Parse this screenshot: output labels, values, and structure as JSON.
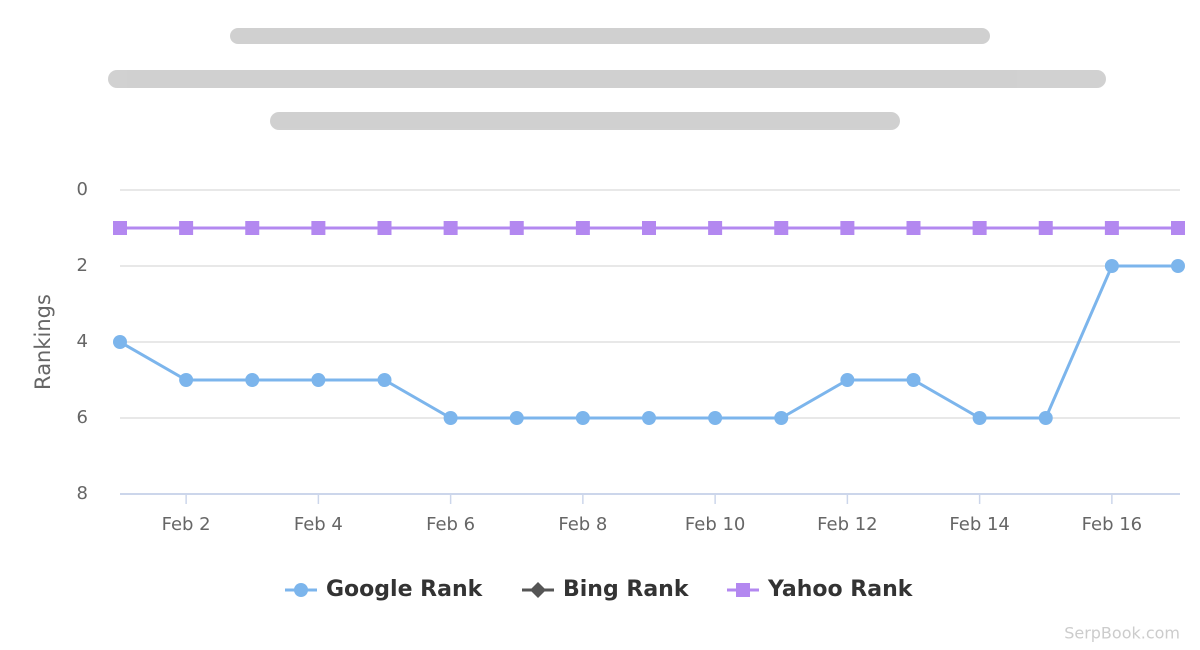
{
  "chart_data": {
    "type": "line",
    "y_label": "Rankings",
    "categories": [
      null,
      "Feb 2",
      null,
      "Feb 4",
      null,
      "Feb 6",
      null,
      "Feb 8",
      null,
      "Feb 10",
      null,
      "Feb 12",
      null,
      "Feb 14",
      null,
      "Feb 16",
      null
    ],
    "series": [
      {
        "name": "Google Rank",
        "color": "#7cb5ec",
        "marker": "circle",
        "values": [
          4,
          5,
          5,
          5,
          5,
          6,
          6,
          6,
          6,
          6,
          6,
          5,
          5,
          6,
          6,
          2,
          2
        ]
      },
      {
        "name": "Bing Rank",
        "color": "#555555",
        "marker": "diamond",
        "values": [
          null,
          null,
          null,
          null,
          null,
          null,
          null,
          null,
          null,
          null,
          null,
          null,
          null,
          null,
          null,
          null,
          null
        ]
      },
      {
        "name": "Yahoo Rank",
        "color": "#b388f0",
        "marker": "square",
        "values": [
          1,
          1,
          1,
          1,
          1,
          1,
          1,
          1,
          1,
          1,
          1,
          1,
          1,
          1,
          1,
          1,
          1
        ]
      }
    ],
    "ylim": [
      0,
      8
    ],
    "yticks": [
      0,
      2,
      4,
      6,
      8
    ],
    "y_reversed": true,
    "grid": true,
    "credit": "SerpBook.com"
  }
}
